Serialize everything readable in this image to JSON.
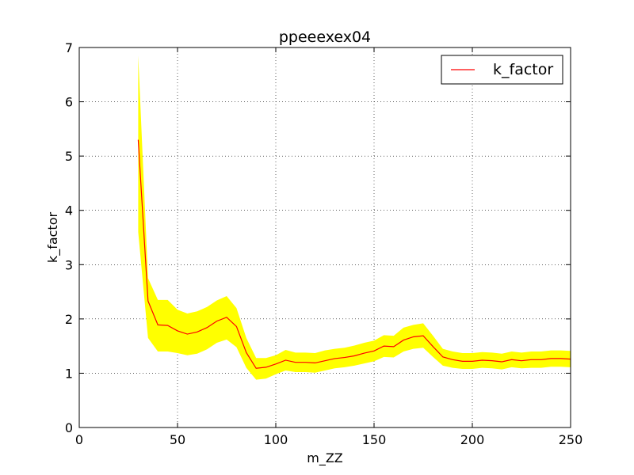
{
  "chart_data": {
    "type": "line",
    "title": "ppeeexex04",
    "xlabel": "m_ZZ",
    "ylabel": "k_factor",
    "xlim": [
      0,
      250
    ],
    "ylim": [
      0,
      7
    ],
    "xticks": [
      0,
      50,
      100,
      150,
      200,
      250
    ],
    "yticks": [
      0,
      1,
      2,
      3,
      4,
      5,
      6,
      7
    ],
    "grid": true,
    "legend_position": "top-right",
    "colors": {
      "line": "#ff0000",
      "band": "#ffff00"
    },
    "series": [
      {
        "name": "k_factor",
        "x": [
          30,
          35,
          40,
          45,
          50,
          55,
          60,
          65,
          70,
          75,
          80,
          85,
          90,
          95,
          100,
          105,
          110,
          115,
          120,
          125,
          130,
          135,
          140,
          145,
          150,
          155,
          160,
          165,
          170,
          175,
          180,
          185,
          190,
          195,
          200,
          205,
          210,
          215,
          220,
          225,
          230,
          235,
          240,
          245,
          250
        ],
        "y": [
          5.3,
          2.33,
          1.89,
          1.88,
          1.78,
          1.72,
          1.76,
          1.84,
          1.96,
          2.03,
          1.86,
          1.38,
          1.09,
          1.11,
          1.17,
          1.24,
          1.2,
          1.2,
          1.19,
          1.23,
          1.27,
          1.29,
          1.32,
          1.37,
          1.41,
          1.5,
          1.49,
          1.61,
          1.67,
          1.69,
          1.49,
          1.3,
          1.25,
          1.22,
          1.22,
          1.24,
          1.23,
          1.21,
          1.25,
          1.23,
          1.25,
          1.25,
          1.27,
          1.27,
          1.26
        ],
        "upper": [
          6.85,
          2.75,
          2.35,
          2.35,
          2.17,
          2.1,
          2.14,
          2.22,
          2.34,
          2.42,
          2.2,
          1.65,
          1.28,
          1.28,
          1.33,
          1.43,
          1.38,
          1.38,
          1.37,
          1.42,
          1.45,
          1.47,
          1.51,
          1.56,
          1.6,
          1.7,
          1.69,
          1.84,
          1.89,
          1.92,
          1.69,
          1.45,
          1.4,
          1.37,
          1.37,
          1.39,
          1.38,
          1.36,
          1.4,
          1.38,
          1.4,
          1.4,
          1.42,
          1.42,
          1.41
        ],
        "lower": [
          3.6,
          1.65,
          1.4,
          1.4,
          1.37,
          1.33,
          1.36,
          1.44,
          1.56,
          1.62,
          1.48,
          1.1,
          0.88,
          0.9,
          0.98,
          1.05,
          1.02,
          1.02,
          1.01,
          1.05,
          1.09,
          1.11,
          1.14,
          1.18,
          1.22,
          1.3,
          1.29,
          1.4,
          1.45,
          1.47,
          1.3,
          1.14,
          1.1,
          1.08,
          1.08,
          1.1,
          1.09,
          1.07,
          1.11,
          1.09,
          1.1,
          1.1,
          1.12,
          1.12,
          1.11
        ]
      }
    ]
  }
}
